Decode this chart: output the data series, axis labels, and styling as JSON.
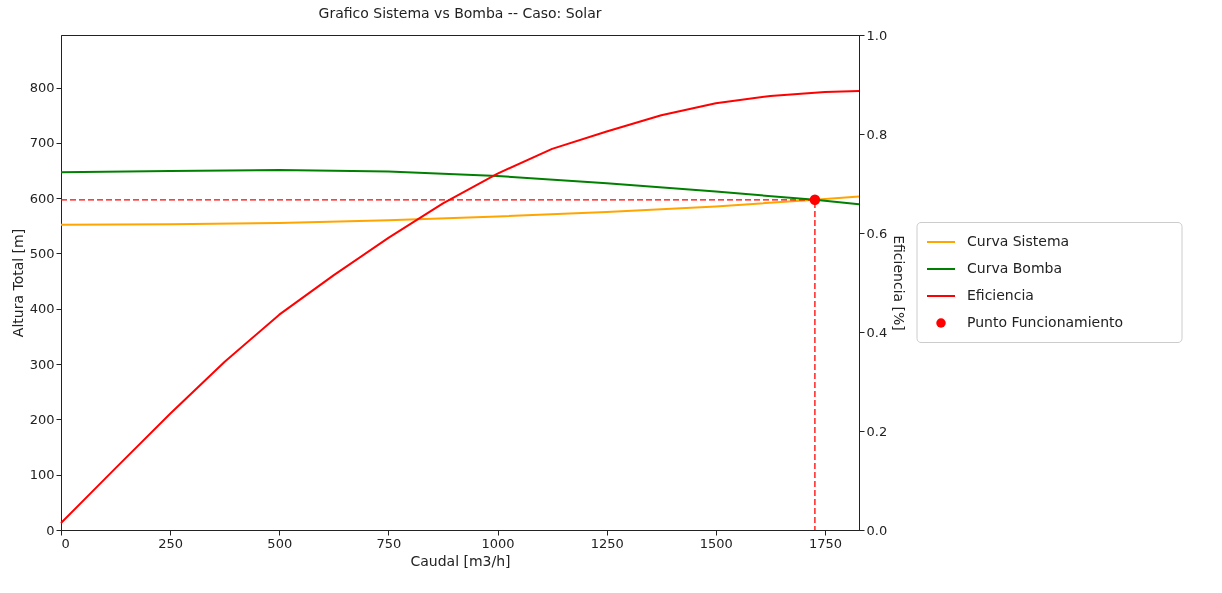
{
  "chart_data": {
    "type": "line",
    "title": "Grafico Sistema vs Bomba -- Caso: Solar",
    "xlabel": "Caudal [m3/h]",
    "ylabel": "Altura Total [m]",
    "y2label": "Eficiencia [%]",
    "xlim": [
      0,
      1828
    ],
    "xticks": [
      0,
      250,
      500,
      750,
      1000,
      1250,
      1500,
      1750
    ],
    "ylim": [
      0,
      895
    ],
    "yticks": [
      0,
      100,
      200,
      300,
      400,
      500,
      600,
      700,
      800
    ],
    "y2lim": [
      0,
      1
    ],
    "y2ticks": [
      {
        "value": 0,
        "label": "0.0"
      },
      0.2,
      0.4,
      0.6,
      0.8,
      {
        "value": 1,
        "label": "1.0"
      }
    ],
    "legend": "right",
    "series": [
      {
        "name": "Curva Sistema",
        "color": "#ffa500",
        "x": [
          0,
          250,
          500,
          750,
          1000,
          1250,
          1500,
          1727,
          1828
        ],
        "values": [
          552,
          553,
          555,
          560,
          567,
          575,
          585,
          597,
          603
        ]
      },
      {
        "name": "Curva Bomba",
        "color": "#008000",
        "x": [
          0,
          250,
          500,
          750,
          1000,
          1250,
          1500,
          1727,
          1828
        ],
        "values": [
          647,
          649,
          651,
          648,
          640,
          627,
          612,
          597,
          589
        ]
      },
      {
        "name": "Eficiencia",
        "color": "#ff0000",
        "axis": "y2",
        "x": [
          0,
          125,
          250,
          375,
          500,
          625,
          750,
          875,
          1000,
          1125,
          1250,
          1375,
          1500,
          1625,
          1750,
          1828
        ],
        "values": [
          0.014,
          0.125,
          0.235,
          0.34,
          0.435,
          0.515,
          0.59,
          0.66,
          0.72,
          0.77,
          0.805,
          0.838,
          0.862,
          0.877,
          0.885,
          0.887
        ]
      },
      {
        "name": "Punto Funcionamiento",
        "type": "scatter",
        "marker": "circle",
        "color": "#ff0000",
        "x": [
          1727
        ],
        "values": [
          597
        ]
      },
      {
        "line_style": "dashed",
        "color": "#ff0000",
        "x": [
          0,
          1727,
          1727
        ],
        "values": [
          597,
          597,
          0
        ]
      }
    ]
  }
}
